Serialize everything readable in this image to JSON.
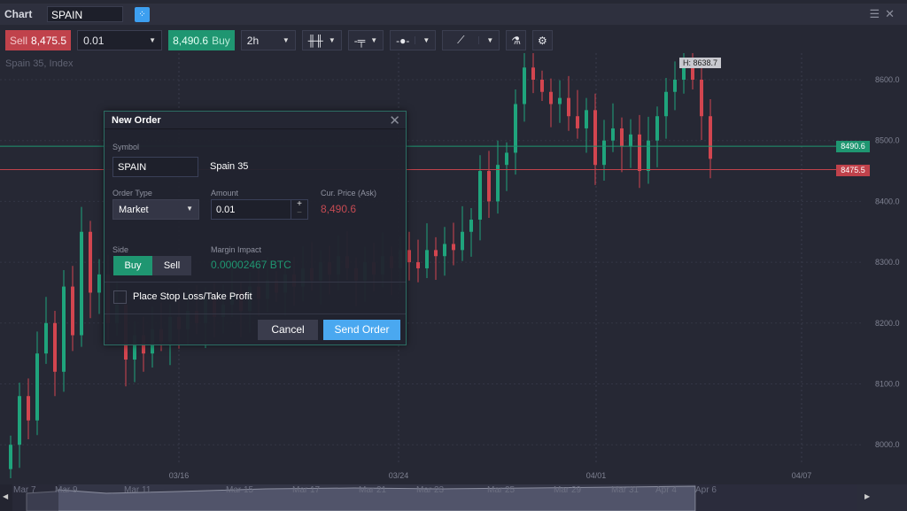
{
  "window": {
    "title": "Chart",
    "symbol": "SPAIN",
    "icons": [
      "link-icon",
      "menu-icon",
      "close-icon"
    ]
  },
  "toolbar": {
    "sell_label": "Sell",
    "sell_price": "8,475.5",
    "quantity": "0.01",
    "buy_price": "8,490.6",
    "buy_label": "Buy",
    "interval": "2h",
    "icons": [
      "candlestick-icon",
      "indicator-icon",
      "clock-icon",
      "line-tool-icon",
      "flask-icon",
      "gear-icon"
    ]
  },
  "chart": {
    "instrument": "Spain 35, Index",
    "high_label": "H: 8638.7",
    "y_ticks": [
      "8600.0",
      "8500.0",
      "8400.0",
      "8300.0",
      "8200.0",
      "8100.0",
      "8000.0"
    ],
    "x_ticks": [
      "03/16",
      "03/24",
      "04/01",
      "04/07"
    ],
    "buy_price_tag": "8490.6",
    "sell_price_tag": "8475.5",
    "colors": {
      "up": "#1fa47c",
      "down": "#d2454f",
      "buy": "#1f9671",
      "sell": "#c0424b"
    }
  },
  "chart_data": {
    "type": "candlestick",
    "yticks": [
      8000,
      8100,
      8200,
      8300,
      8400,
      8500,
      8600
    ],
    "ylim": [
      7950,
      8660
    ],
    "buy_line": 8490.6,
    "sell_line": 8475.5,
    "high": 8638.7,
    "closes": [
      8000,
      8080,
      8040,
      8150,
      8200,
      8120,
      8260,
      8180,
      8350,
      8250,
      8280,
      8200,
      8230,
      8140,
      8180,
      8150,
      8190,
      8170,
      8210,
      8190,
      8220,
      8200,
      8240,
      8210,
      8230,
      8250,
      8220,
      8260,
      8240,
      8270,
      8250,
      8280,
      8260,
      8290,
      8270,
      8300,
      8280,
      8310,
      8290,
      8270,
      8300,
      8280,
      8310,
      8290,
      8320,
      8300,
      8290,
      8320,
      8310,
      8330,
      8320,
      8350,
      8370,
      8450,
      8400,
      8460,
      8480,
      8560,
      8620,
      8600,
      8580,
      8560,
      8570,
      8540,
      8520,
      8550,
      8460,
      8500,
      8520,
      8490,
      8510,
      8450,
      8500,
      8540,
      8580,
      8600,
      8630,
      8600,
      8540,
      8470
    ]
  },
  "navigator": {
    "labels": [
      "Mar 7",
      "Mar 9",
      "Mar 11",
      "Mar 15",
      "Mar 17",
      "Mar 21",
      "Mar 23",
      "Mar 25",
      "Mar 29",
      "Mar 31",
      "Apr 4",
      "Apr 6"
    ]
  },
  "dialog": {
    "title": "New Order",
    "symbol_label": "Symbol",
    "symbol_value": "SPAIN",
    "symbol_name": "Spain 35",
    "order_type_label": "Order Type",
    "order_type_value": "Market",
    "amount_label": "Amount",
    "amount_value": "0.01",
    "price_label": "Cur. Price (Ask)",
    "price_value": "8,490.6",
    "side_label": "Side",
    "side_buy": "Buy",
    "side_sell": "Sell",
    "side_selected": "Buy",
    "margin_label": "Margin Impact",
    "margin_value": "0.00002467 BTC",
    "sltp_label": "Place Stop Loss/Take Profit",
    "sltp_checked": false,
    "cancel": "Cancel",
    "send": "Send Order"
  }
}
